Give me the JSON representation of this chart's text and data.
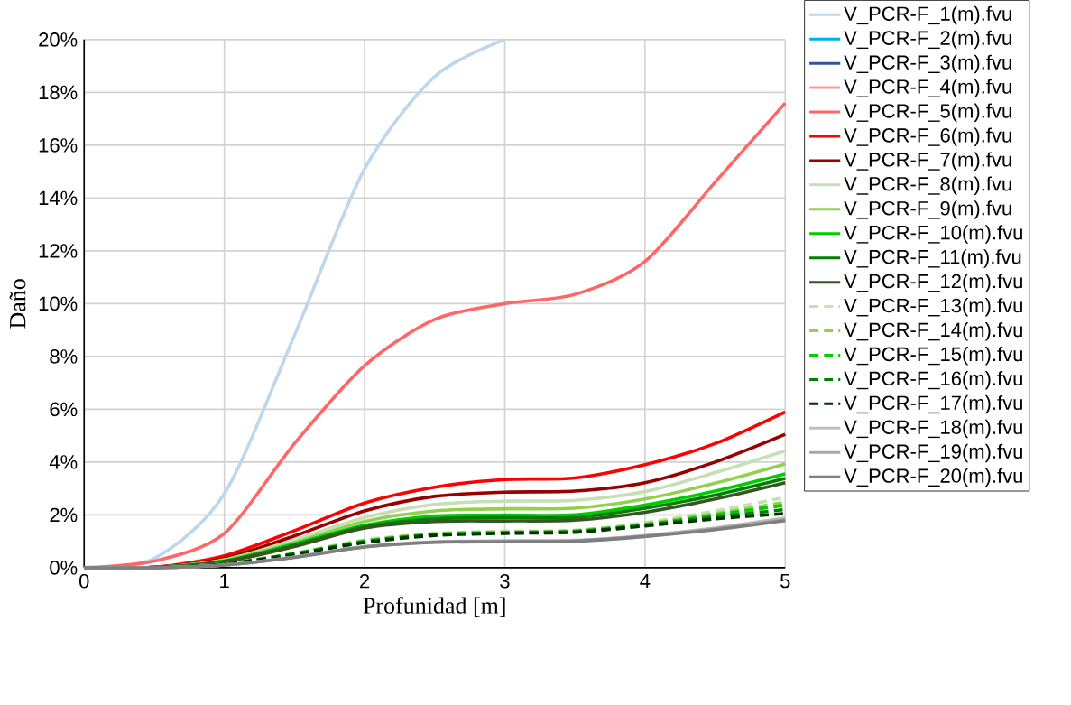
{
  "chart_data": {
    "type": "line",
    "xlabel": "Profunidad [m]",
    "ylabel": "Daño",
    "x": [
      0,
      0.5,
      1,
      1.5,
      2,
      2.5,
      3,
      3.5,
      4,
      4.5,
      5
    ],
    "xlim": [
      0,
      5
    ],
    "xticks": [
      0,
      1,
      2,
      3,
      4,
      5
    ],
    "ylim": [
      0,
      20
    ],
    "yticks": [
      {
        "value": 0,
        "label": "0%"
      },
      {
        "value": 2,
        "label": "2%"
      },
      {
        "value": 4,
        "label": "4%"
      },
      {
        "value": 6,
        "label": "6%"
      },
      {
        "value": 8,
        "label": "8%"
      },
      {
        "value": 10,
        "label": "10%"
      },
      {
        "value": 12,
        "label": "12%"
      },
      {
        "value": 14,
        "label": "14%"
      },
      {
        "value": 16,
        "label": "16%"
      },
      {
        "value": 18,
        "label": "18%"
      },
      {
        "value": 20,
        "label": "20%"
      }
    ],
    "grid": true,
    "legend": "right",
    "marker": "none",
    "series": [
      {
        "name": "V_PCR-F_1(m).fvu",
        "color": "#bdd7ee",
        "x": [
          0,
          0.5,
          1,
          1.5,
          2,
          2.5,
          3
        ],
        "values": [
          0,
          0.35,
          2.8,
          8.8,
          15.1,
          18.6,
          20
        ]
      },
      {
        "name": "V_PCR-F_2(m).fvu",
        "color": "#00b0f0",
        "values": [
          null,
          null,
          null,
          null,
          null,
          null,
          null,
          null,
          null,
          null,
          null
        ]
      },
      {
        "name": "V_PCR-F_3(m).fvu",
        "color": "#2f5597",
        "values": [
          null,
          null,
          null,
          null,
          null,
          null,
          null,
          null,
          null,
          null,
          null
        ]
      },
      {
        "name": "V_PCR-F_4(m).fvu",
        "color": "#ff9999",
        "values": [
          null,
          null,
          null,
          null,
          null,
          null,
          null,
          null,
          null,
          null,
          null
        ]
      },
      {
        "name": "V_PCR-F_5(m).fvu",
        "color": "#ff6666",
        "values": [
          0,
          0.25,
          1.3,
          4.7,
          7.65,
          9.4,
          10.0,
          10.35,
          11.6,
          14.6,
          17.6
        ]
      },
      {
        "name": "V_PCR-F_6(m).fvu",
        "color": "#ff0000",
        "values": [
          0,
          0.02,
          0.45,
          1.4,
          2.45,
          3.05,
          3.34,
          3.4,
          3.9,
          4.7,
          5.9
        ]
      },
      {
        "name": "V_PCR-F_7(m).fvu",
        "color": "#990000",
        "values": [
          0,
          0.02,
          0.35,
          1.2,
          2.15,
          2.7,
          2.86,
          2.9,
          3.22,
          4.0,
          5.05
        ]
      },
      {
        "name": "V_PCR-F_8(m).fvu",
        "color": "#c5e0b4",
        "values": [
          0,
          0.01,
          0.3,
          1.05,
          1.9,
          2.4,
          2.52,
          2.55,
          2.88,
          3.6,
          4.42
        ]
      },
      {
        "name": "V_PCR-F_9(m).fvu",
        "color": "#92d050",
        "values": [
          0,
          0.01,
          0.28,
          0.95,
          1.75,
          2.15,
          2.23,
          2.25,
          2.6,
          3.2,
          3.93
        ]
      },
      {
        "name": "V_PCR-F_10(m).fvu",
        "color": "#00cc00",
        "values": [
          0,
          0.01,
          0.25,
          0.9,
          1.6,
          1.95,
          1.99,
          2.0,
          2.37,
          2.9,
          3.55
        ]
      },
      {
        "name": "V_PCR-F_11(m).fvu",
        "color": "#008000",
        "values": [
          0,
          0.01,
          0.24,
          0.85,
          1.55,
          1.85,
          1.9,
          1.9,
          2.25,
          2.75,
          3.38
        ]
      },
      {
        "name": "V_PCR-F_12(m).fvu",
        "color": "#375623",
        "values": [
          0,
          0.01,
          0.22,
          0.8,
          1.5,
          1.75,
          1.77,
          1.8,
          2.1,
          2.6,
          3.22
        ]
      },
      {
        "name": "V_PCR-F_13(m).fvu",
        "color": "#c5e0b4",
        "line_style": "dashed",
        "values": [
          0,
          0,
          0.15,
          0.55,
          1.05,
          1.3,
          1.38,
          1.42,
          1.7,
          2.15,
          2.66
        ]
      },
      {
        "name": "V_PCR-F_14(m).fvu",
        "color": "#92d050",
        "line_style": "dashed",
        "values": [
          0,
          0,
          0.15,
          0.54,
          1.02,
          1.28,
          1.35,
          1.4,
          1.66,
          2.05,
          2.48
        ]
      },
      {
        "name": "V_PCR-F_15(m).fvu",
        "color": "#00cc00",
        "line_style": "dashed",
        "values": [
          0,
          0,
          0.14,
          0.53,
          1.0,
          1.26,
          1.33,
          1.38,
          1.63,
          2.0,
          2.37
        ]
      },
      {
        "name": "V_PCR-F_16(m).fvu",
        "color": "#008000",
        "line_style": "dashed",
        "values": [
          0,
          0,
          0.14,
          0.52,
          0.98,
          1.24,
          1.31,
          1.36,
          1.6,
          1.92,
          2.2
        ]
      },
      {
        "name": "V_PCR-F_17(m).fvu",
        "color": "#003300",
        "line_style": "dashed",
        "values": [
          0,
          0,
          0.13,
          0.5,
          0.95,
          1.22,
          1.3,
          1.34,
          1.58,
          1.85,
          2.05
        ]
      },
      {
        "name": "V_PCR-F_18(m).fvu",
        "color": "#bfbfbf",
        "values": [
          0,
          0,
          0.1,
          0.4,
          0.8,
          0.98,
          1.02,
          1.04,
          1.22,
          1.5,
          1.88
        ]
      },
      {
        "name": "V_PCR-F_19(m).fvu",
        "color": "#a6a6a6",
        "values": [
          0,
          0,
          0.1,
          0.4,
          0.79,
          0.97,
          1.0,
          1.02,
          1.2,
          1.47,
          1.82
        ]
      },
      {
        "name": "V_PCR-F_20(m).fvu",
        "color": "#7f7f7f",
        "values": [
          0,
          0,
          0.1,
          0.39,
          0.78,
          0.96,
          0.98,
          1.0,
          1.18,
          1.44,
          1.78
        ]
      }
    ]
  }
}
